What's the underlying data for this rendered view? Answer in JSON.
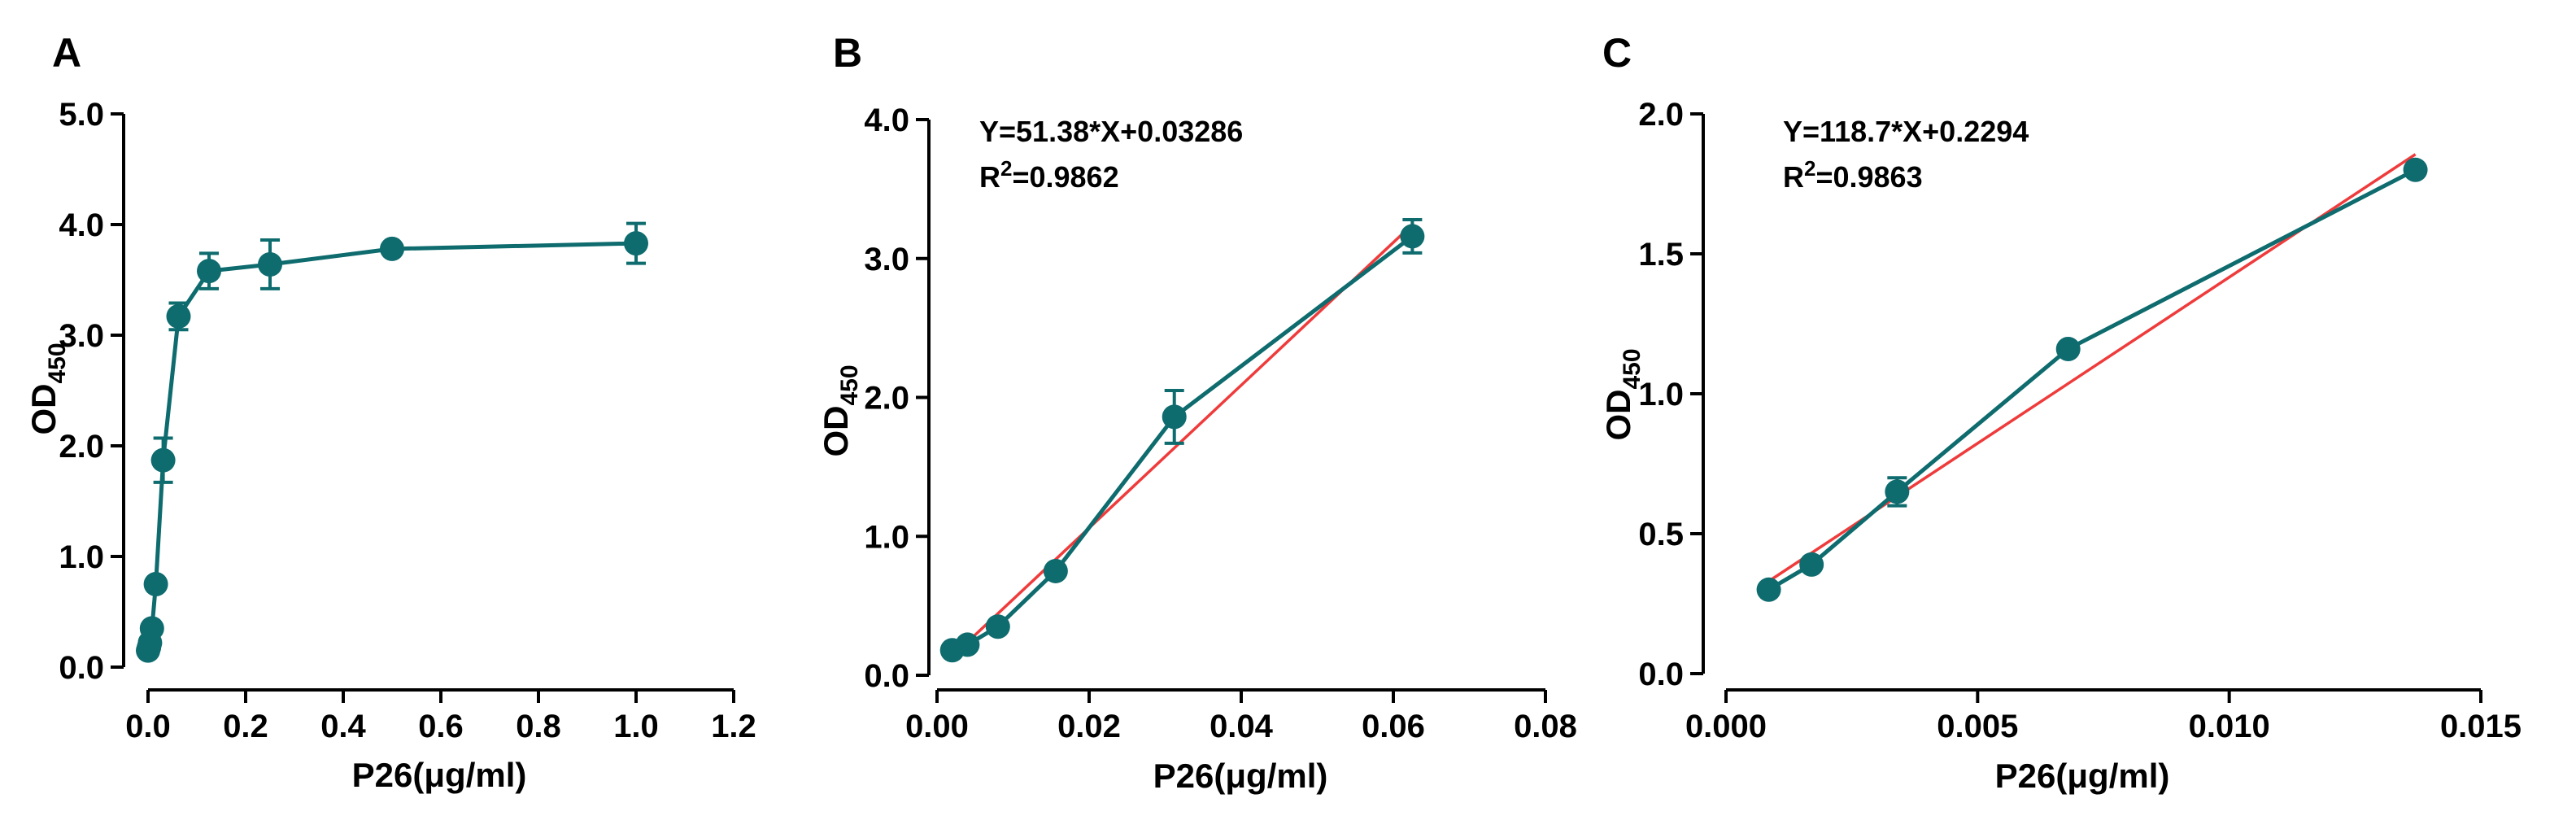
{
  "colors": {
    "data": "#0e6b6e",
    "fit": "#ef3b3b",
    "axis": "#000000"
  },
  "chart_data": [
    {
      "type": "line",
      "panel_label": "A",
      "xlabel": "P26(μg/ml)",
      "ylabel_main": "OD",
      "ylabel_sub": "450",
      "xlim": [
        0,
        1.2
      ],
      "ylim": [
        0,
        5
      ],
      "xticks": [
        0,
        0.2,
        0.4,
        0.6,
        0.8,
        1.0,
        1.2
      ],
      "xtick_labels": [
        "0.0",
        "0.2",
        "0.4",
        "0.6",
        "0.8",
        "1.0",
        "1.2"
      ],
      "yticks": [
        0,
        1,
        2,
        3,
        4,
        5
      ],
      "ytick_labels": [
        "0.0",
        "1.0",
        "2.0",
        "3.0",
        "4.0",
        "5.0"
      ],
      "series": [
        {
          "name": "P26",
          "x": [
            0.0,
            0.002,
            0.004,
            0.008,
            0.016,
            0.031,
            0.0625,
            0.125,
            0.25,
            0.5,
            1.0
          ],
          "y": [
            0.15,
            0.18,
            0.22,
            0.35,
            0.75,
            1.87,
            3.17,
            3.58,
            3.64,
            3.78,
            3.83
          ],
          "err": [
            0.02,
            0.02,
            0.03,
            0.04,
            0.05,
            0.2,
            0.12,
            0.16,
            0.22,
            0.05,
            0.18
          ]
        }
      ]
    },
    {
      "type": "line",
      "panel_label": "B",
      "xlabel": "P26(μg/ml)",
      "ylabel_main": "OD",
      "ylabel_sub": "450",
      "xlim": [
        0,
        0.08
      ],
      "ylim": [
        0,
        4
      ],
      "xticks": [
        0,
        0.02,
        0.04,
        0.06,
        0.08
      ],
      "xtick_labels": [
        "0.00",
        "0.02",
        "0.04",
        "0.06",
        "0.08"
      ],
      "yticks": [
        0,
        1,
        2,
        3,
        4
      ],
      "ytick_labels": [
        "0.0",
        "1.0",
        "2.0",
        "3.0",
        "4.0"
      ],
      "equation": "Y=51.38*X+0.03286",
      "r2_prefix": "R",
      "r2_sup": "2",
      "r2_value": "=0.9862",
      "fit": {
        "slope": 51.38,
        "intercept": 0.03286,
        "x_range": [
          0.002,
          0.0625
        ]
      },
      "series": [
        {
          "name": "P26",
          "x": [
            0.002,
            0.004,
            0.008,
            0.0156,
            0.0312,
            0.0625
          ],
          "y": [
            0.18,
            0.22,
            0.35,
            0.75,
            1.86,
            3.16
          ],
          "err": [
            0.02,
            0.03,
            0.04,
            0.03,
            0.19,
            0.12
          ]
        }
      ]
    },
    {
      "type": "line",
      "panel_label": "C",
      "xlabel": "P26(μg/ml)",
      "ylabel_main": "OD",
      "ylabel_sub": "450",
      "xlim": [
        0,
        0.015
      ],
      "ylim": [
        0,
        2
      ],
      "xticks": [
        0,
        0.005,
        0.01,
        0.015
      ],
      "xtick_labels": [
        "0.000",
        "0.005",
        "0.010",
        "0.015"
      ],
      "yticks": [
        0,
        0.5,
        1.0,
        1.5,
        2.0
      ],
      "ytick_labels": [
        "0.0",
        "0.5",
        "1.0",
        "1.5",
        "2.0"
      ],
      "equation": "Y=118.7*X+0.2294",
      "r2_prefix": "R",
      "r2_sup": "2",
      "r2_value": "=0.9863",
      "fit": {
        "slope": 118.7,
        "intercept": 0.2294,
        "x_range": [
          0.00085,
          0.0137
        ]
      },
      "series": [
        {
          "name": "P26",
          "x": [
            0.00085,
            0.0017,
            0.0034,
            0.0068,
            0.0137
          ],
          "y": [
            0.3,
            0.39,
            0.65,
            1.16,
            1.8
          ],
          "err": [
            0.01,
            0.02,
            0.05,
            0.02,
            0.02
          ]
        }
      ]
    }
  ]
}
